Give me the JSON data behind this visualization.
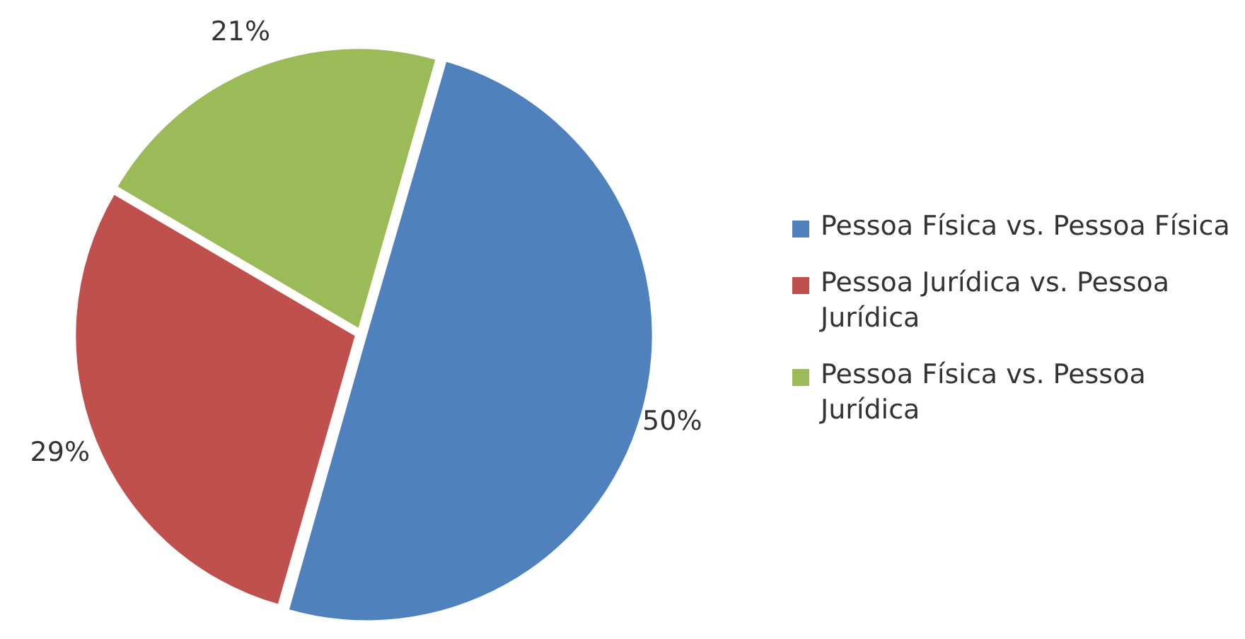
{
  "chart_data": {
    "type": "pie",
    "categories": [
      "Pessoa Física vs. Pessoa Física",
      "Pessoa Jurídica vs. Pessoa Jurídica",
      "Pessoa Física vs. Pessoa Jurídica"
    ],
    "values": [
      50,
      29,
      21
    ],
    "value_labels": [
      "50%",
      "29%",
      "21%"
    ],
    "colors": [
      "#4f81bd",
      "#c0504d",
      "#9bbb59"
    ],
    "legend": "right"
  }
}
